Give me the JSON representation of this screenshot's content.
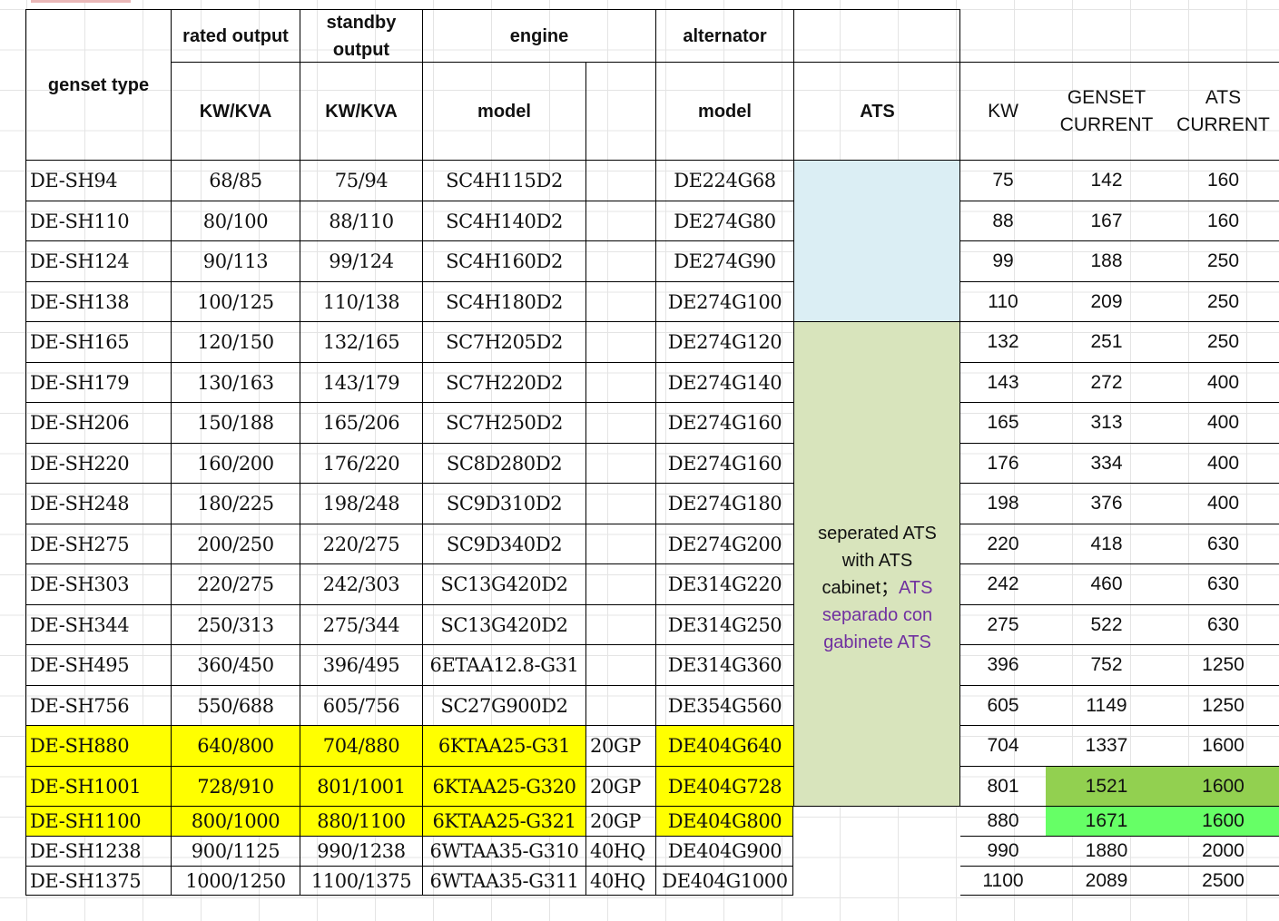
{
  "header": {
    "genset_type": "genset type",
    "rated_output": "rated output",
    "standby_output_line1": "standby",
    "standby_output_line2": "output",
    "engine": "engine",
    "alternator": "alternator",
    "kwkva_rated": "KW/KVA",
    "kwkva_standby": "KW/KVA",
    "engine_model": "model",
    "alternator_model": "model",
    "ats": "ATS"
  },
  "right_header": {
    "kw": "KW",
    "genset_current_line1": "GENSET",
    "genset_current_line2": "CURRENT",
    "ats_current_line1": "ATS",
    "ats_current_line2": "CURRENT"
  },
  "ats_note": {
    "line1": "seperated ATS",
    "line2": "with ATS",
    "line3_black": "cabinet；",
    "line3_purple": "ATS",
    "line4": "separado con",
    "line5": "gabinete ATS"
  },
  "colors": {
    "highlight_yellow": "#ffff00",
    "ats_blue": "#dbeef4",
    "ats_green": "#d8e4bc",
    "current_green_dark": "#92d050",
    "current_green_light": "#66ff66",
    "purple_text": "#7030a0"
  },
  "rows": [
    {
      "type": "DE-SH94",
      "rated": "68/85",
      "standby": "75/94",
      "engine": "SC4H115D2",
      "container": "",
      "alternator": "DE224G68",
      "kw": "75",
      "genset_current": "142",
      "ats_current": "160"
    },
    {
      "type": "DE-SH110",
      "rated": "80/100",
      "standby": "88/110",
      "engine": "SC4H140D2",
      "container": "",
      "alternator": "DE274G80",
      "kw": "88",
      "genset_current": "167",
      "ats_current": "160"
    },
    {
      "type": "DE-SH124",
      "rated": "90/113",
      "standby": "99/124",
      "engine": "SC4H160D2",
      "container": "",
      "alternator": "DE274G90",
      "kw": "99",
      "genset_current": "188",
      "ats_current": "250"
    },
    {
      "type": "DE-SH138",
      "rated": "100/125",
      "standby": "110/138",
      "engine": "SC4H180D2",
      "container": "",
      "alternator": "DE274G100",
      "kw": "110",
      "genset_current": "209",
      "ats_current": "250"
    },
    {
      "type": "DE-SH165",
      "rated": "120/150",
      "standby": "132/165",
      "engine": "SC7H205D2",
      "container": "",
      "alternator": "DE274G120",
      "kw": "132",
      "genset_current": "251",
      "ats_current": "250"
    },
    {
      "type": "DE-SH179",
      "rated": "130/163",
      "standby": "143/179",
      "engine": "SC7H220D2",
      "container": "",
      "alternator": "DE274G140",
      "kw": "143",
      "genset_current": "272",
      "ats_current": "400"
    },
    {
      "type": "DE-SH206",
      "rated": "150/188",
      "standby": "165/206",
      "engine": "SC7H250D2",
      "container": "",
      "alternator": "DE274G160",
      "kw": "165",
      "genset_current": "313",
      "ats_current": "400"
    },
    {
      "type": "DE-SH220",
      "rated": "160/200",
      "standby": "176/220",
      "engine": "SC8D280D2",
      "container": "",
      "alternator": "DE274G160",
      "kw": "176",
      "genset_current": "334",
      "ats_current": "400"
    },
    {
      "type": "DE-SH248",
      "rated": "180/225",
      "standby": "198/248",
      "engine": "SC9D310D2",
      "container": "",
      "alternator": "DE274G180",
      "kw": "198",
      "genset_current": "376",
      "ats_current": "400"
    },
    {
      "type": "DE-SH275",
      "rated": "200/250",
      "standby": "220/275",
      "engine": "SC9D340D2",
      "container": "",
      "alternator": "DE274G200",
      "kw": "220",
      "genset_current": "418",
      "ats_current": "630"
    },
    {
      "type": "DE-SH303",
      "rated": "220/275",
      "standby": "242/303",
      "engine": "SC13G420D2",
      "container": "",
      "alternator": "DE314G220",
      "kw": "242",
      "genset_current": "460",
      "ats_current": "630"
    },
    {
      "type": "DE-SH344",
      "rated": "250/313",
      "standby": "275/344",
      "engine": "SC13G420D2",
      "container": "",
      "alternator": "DE314G250",
      "kw": "275",
      "genset_current": "522",
      "ats_current": "630"
    },
    {
      "type": "DE-SH495",
      "rated": "360/450",
      "standby": "396/495",
      "engine": "6ETAA12.8-G31",
      "container": "",
      "alternator": "DE314G360",
      "kw": "396",
      "genset_current": "752",
      "ats_current": "1250"
    },
    {
      "type": "DE-SH756",
      "rated": "550/688",
      "standby": "605/756",
      "engine": "SC27G900D2",
      "container": "",
      "alternator": "DE354G560",
      "kw": "605",
      "genset_current": "1149",
      "ats_current": "1250"
    },
    {
      "type": "DE-SH880",
      "rated": "640/800",
      "standby": "704/880",
      "engine": "6KTAA25-G31",
      "container": "20GP",
      "alternator": "DE404G640",
      "kw": "704",
      "genset_current": "1337",
      "ats_current": "1600"
    },
    {
      "type": "DE-SH1001",
      "rated": "728/910",
      "standby": "801/1001",
      "engine": "6KTAA25-G320",
      "container": "20GP",
      "alternator": "DE404G728",
      "kw": "801",
      "genset_current": "1521",
      "ats_current": "1600"
    },
    {
      "type": "DE-SH1100",
      "rated": "800/1000",
      "standby": "880/1100",
      "engine": "6KTAA25-G321",
      "container": "20GP",
      "alternator": "DE404G800",
      "kw": "880",
      "genset_current": "1671",
      "ats_current": "1600"
    },
    {
      "type": "DE-SH1238",
      "rated": "900/1125",
      "standby": "990/1238",
      "engine": "6WTAA35-G310",
      "container": "40HQ",
      "alternator": "DE404G900",
      "kw": "990",
      "genset_current": "1880",
      "ats_current": "2000"
    },
    {
      "type": "DE-SH1375",
      "rated": "1000/1250",
      "standby": "1100/1375",
      "engine": "6WTAA35-G311",
      "container": "40HQ",
      "alternator": "DE404G1000",
      "kw": "1100",
      "genset_current": "2089",
      "ats_current": "2500"
    }
  ]
}
